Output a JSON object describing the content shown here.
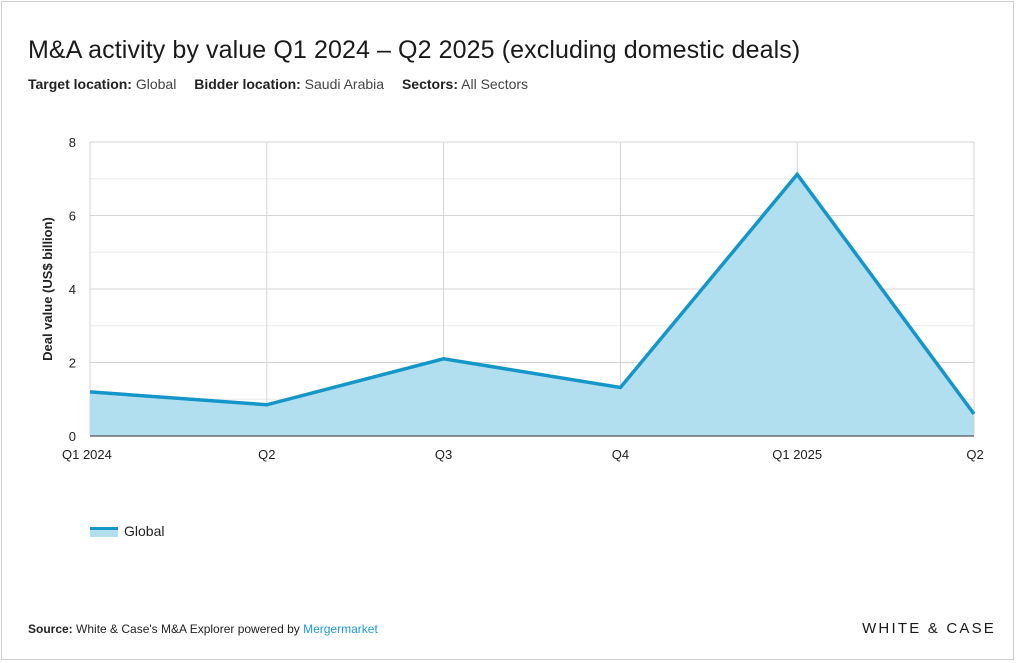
{
  "title": "M&A activity by value Q1 2024 – Q2 2025 (excluding domestic deals)",
  "filters": [
    {
      "label": "Target location:",
      "value": "Global"
    },
    {
      "label": "Bidder location:",
      "value": "Saudi Arabia"
    },
    {
      "label": "Sectors:",
      "value": "All Sectors"
    }
  ],
  "colors": {
    "line": "#1596c9",
    "area": "#b2dff0",
    "grid": "#d6d6d6",
    "axis": "#555555"
  },
  "chart_data": {
    "type": "area",
    "title": "M&A activity by value Q1 2024 – Q2 2025 (excluding domestic deals)",
    "xlabel": "",
    "ylabel": "Deal value (US$ billion)",
    "ylim": [
      0,
      8
    ],
    "yticks": [
      "0",
      "2",
      "4",
      "6",
      "8"
    ],
    "categories": [
      "Q1 2024",
      "Q2",
      "Q3",
      "Q4",
      "Q1 2025",
      "Q2"
    ],
    "grid": true,
    "legend_position": "bottom-left",
    "series": [
      {
        "name": "Global",
        "values": [
          1.2,
          0.85,
          2.1,
          1.32,
          7.12,
          0.6
        ]
      }
    ]
  },
  "footer": {
    "source_label": "Source:",
    "source_text": "White & Case's M&A Explorer powered by ",
    "source_link": "Mergermarket"
  },
  "brand": "WHITE & CASE"
}
